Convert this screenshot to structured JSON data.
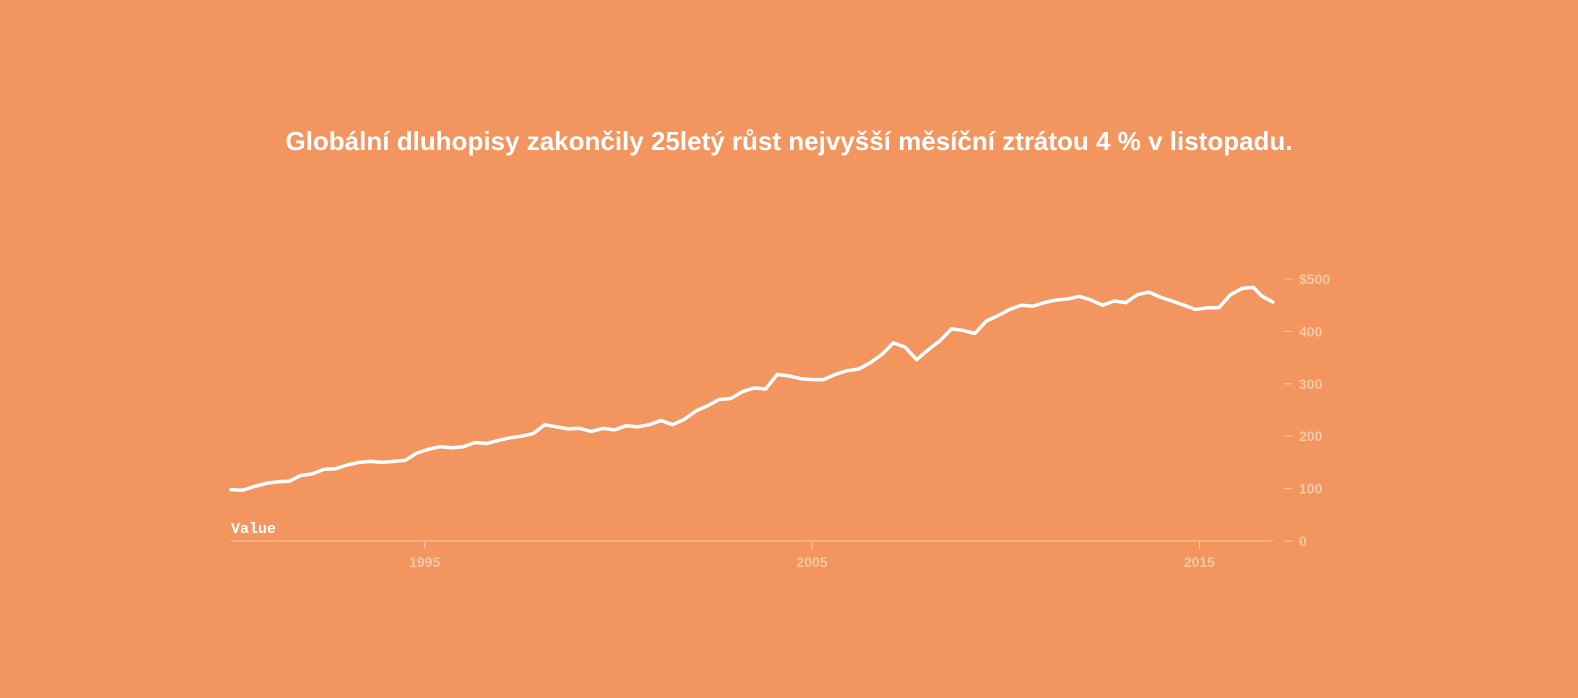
{
  "chart_data": {
    "type": "line",
    "title": "Globální dluhopisy zakončily 25letý růst nejvyšší měsíční ztrátou 4 % v listopadu.",
    "series_label": "Value",
    "x_range": [
      1990.0,
      2016.9
    ],
    "ylim": [
      0,
      500
    ],
    "x_ticks": [
      {
        "value": 1995,
        "label": "1995"
      },
      {
        "value": 2005,
        "label": "2005"
      },
      {
        "value": 2015,
        "label": "2015"
      }
    ],
    "y_ticks": [
      {
        "value": 0,
        "label": "0"
      },
      {
        "value": 100,
        "label": "100"
      },
      {
        "value": 200,
        "label": "200"
      },
      {
        "value": 300,
        "label": "300"
      },
      {
        "value": 400,
        "label": "400"
      },
      {
        "value": 500,
        "label": "$500"
      }
    ],
    "y_axis_side": "right",
    "grid": false,
    "colors": {
      "background": "#f3955f",
      "line": "#ffffff",
      "axis": "#f8c8a6"
    },
    "series": [
      {
        "x": [
          1990.0,
          1990.3,
          1990.6,
          1990.9,
          1991.2,
          1991.5,
          1991.8,
          1992.1,
          1992.4,
          1992.7,
          1993.0,
          1993.3,
          1993.6,
          1993.9,
          1994.2,
          1994.5,
          1994.8,
          1995.1,
          1995.4,
          1995.7,
          1996.0,
          1996.3,
          1996.6,
          1996.9,
          1997.2,
          1997.5,
          1997.8,
          1998.1,
          1998.4,
          1998.7,
          1999.0,
          1999.3,
          1999.6,
          1999.9,
          2000.2,
          2000.5,
          2000.8,
          2001.1,
          2001.4,
          2001.7,
          2002.0,
          2002.3,
          2002.6,
          2002.9,
          2003.2,
          2003.5,
          2003.8,
          2004.1,
          2004.4,
          2004.7,
          2005.0,
          2005.3,
          2005.6,
          2005.9,
          2006.2,
          2006.5,
          2006.8,
          2007.1,
          2007.4,
          2007.7,
          2008.0,
          2008.3,
          2008.6,
          2008.9,
          2009.2,
          2009.5,
          2009.8,
          2010.1,
          2010.4,
          2010.7,
          2011.0,
          2011.3,
          2011.6,
          2011.9,
          2012.2,
          2012.5,
          2012.8,
          2013.1,
          2013.4,
          2013.7,
          2014.0,
          2014.3,
          2014.6,
          2014.9,
          2015.2,
          2015.5,
          2015.8,
          2016.1,
          2016.4,
          2016.6,
          2016.9
        ],
        "values": [
          98,
          97,
          104,
          110,
          113,
          114,
          125,
          128,
          137,
          138,
          145,
          150,
          152,
          150,
          152,
          154,
          168,
          175,
          180,
          178,
          180,
          188,
          186,
          192,
          197,
          200,
          205,
          222,
          218,
          214,
          215,
          209,
          215,
          212,
          220,
          218,
          222,
          230,
          222,
          232,
          248,
          258,
          270,
          272,
          285,
          292,
          290,
          318,
          315,
          310,
          308,
          308,
          318,
          325,
          328,
          340,
          356,
          378,
          370,
          346,
          365,
          382,
          405,
          402,
          396,
          420,
          430,
          442,
          450,
          448,
          455,
          460,
          462,
          467,
          460,
          450,
          458,
          455,
          470,
          475,
          465,
          458,
          450,
          442,
          445,
          445,
          470,
          482,
          484,
          468,
          456
        ]
      }
    ]
  }
}
